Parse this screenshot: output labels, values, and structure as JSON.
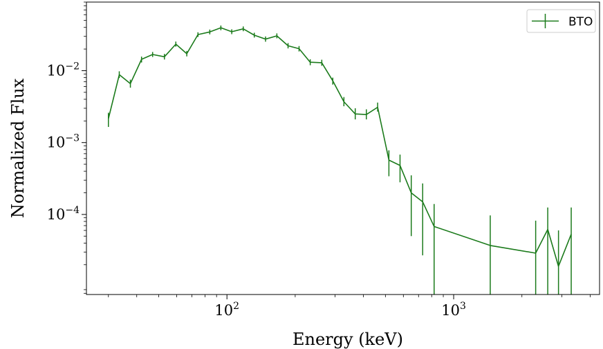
{
  "chart_data": {
    "type": "line",
    "xlabel": "Energy (keV)",
    "ylabel": "Normalized Flux",
    "xscale": "log",
    "yscale": "log",
    "xlim": [
      24,
      4400
    ],
    "ylim": [
      7.7e-06,
      0.09
    ],
    "x_ticks": [
      {
        "value": 100,
        "base": "10",
        "exp": "2"
      },
      {
        "value": 1000,
        "base": "10",
        "exp": "3"
      }
    ],
    "y_ticks": [
      {
        "value": 0.0001,
        "base": "10",
        "exp": "−4"
      },
      {
        "value": 0.001,
        "base": "10",
        "exp": "−3"
      },
      {
        "value": 0.01,
        "base": "10",
        "exp": "−2"
      }
    ],
    "grid": false,
    "legend": {
      "position": "top-right"
    },
    "series": [
      {
        "name": "BTO",
        "color": "#1a7a1a",
        "points": [
          {
            "x": 30,
            "y": 0.00215,
            "lo": 0.00165,
            "hi": 0.0026
          },
          {
            "x": 33.5,
            "y": 0.0088,
            "lo": 0.0079,
            "hi": 0.0098
          },
          {
            "x": 37.5,
            "y": 0.0066,
            "lo": 0.0058,
            "hi": 0.0075
          },
          {
            "x": 42,
            "y": 0.0144,
            "lo": 0.013,
            "hi": 0.0157
          },
          {
            "x": 47,
            "y": 0.0168,
            "lo": 0.0155,
            "hi": 0.0182
          },
          {
            "x": 53,
            "y": 0.0156,
            "lo": 0.0143,
            "hi": 0.0171
          },
          {
            "x": 59.5,
            "y": 0.0234,
            "lo": 0.0216,
            "hi": 0.0254
          },
          {
            "x": 66.5,
            "y": 0.0172,
            "lo": 0.0158,
            "hi": 0.0188
          },
          {
            "x": 74.5,
            "y": 0.0318,
            "lo": 0.0295,
            "hi": 0.0342
          },
          {
            "x": 84,
            "y": 0.0346,
            "lo": 0.032,
            "hi": 0.0373
          },
          {
            "x": 94,
            "y": 0.0395,
            "lo": 0.0365,
            "hi": 0.0425
          },
          {
            "x": 105,
            "y": 0.0348,
            "lo": 0.0322,
            "hi": 0.0376
          },
          {
            "x": 118,
            "y": 0.0382,
            "lo": 0.0354,
            "hi": 0.0412
          },
          {
            "x": 132,
            "y": 0.0312,
            "lo": 0.0289,
            "hi": 0.0337
          },
          {
            "x": 148,
            "y": 0.0275,
            "lo": 0.0253,
            "hi": 0.0299
          },
          {
            "x": 166,
            "y": 0.0305,
            "lo": 0.0282,
            "hi": 0.033
          },
          {
            "x": 186,
            "y": 0.0222,
            "lo": 0.0204,
            "hi": 0.0242
          },
          {
            "x": 208,
            "y": 0.0202,
            "lo": 0.0185,
            "hi": 0.022
          },
          {
            "x": 233,
            "y": 0.0131,
            "lo": 0.0119,
            "hi": 0.0144
          },
          {
            "x": 262,
            "y": 0.0129,
            "lo": 0.0117,
            "hi": 0.0142
          },
          {
            "x": 293,
            "y": 0.0072,
            "lo": 0.0064,
            "hi": 0.008
          },
          {
            "x": 328,
            "y": 0.0037,
            "lo": 0.0032,
            "hi": 0.0043
          },
          {
            "x": 368,
            "y": 0.0025,
            "lo": 0.0021,
            "hi": 0.003
          },
          {
            "x": 412,
            "y": 0.00245,
            "lo": 0.0021,
            "hi": 0.0029
          },
          {
            "x": 462,
            "y": 0.0031,
            "lo": 0.0027,
            "hi": 0.0036
          },
          {
            "x": 518,
            "y": 0.00057,
            "lo": 0.00034,
            "hi": 0.00078
          },
          {
            "x": 580,
            "y": 0.00048,
            "lo": 0.00028,
            "hi": 0.00068
          },
          {
            "x": 650,
            "y": 0.0002,
            "lo": 5e-05,
            "hi": 0.00035
          },
          {
            "x": 730,
            "y": 0.00015,
            "lo": 2.7e-05,
            "hi": 0.00027
          },
          {
            "x": 820,
            "y": 6.8e-05,
            "lo": 7.7e-06,
            "hi": 0.00014
          },
          {
            "x": 1450,
            "y": 3.7e-05,
            "lo": 7.7e-06,
            "hi": 9.7e-05
          },
          {
            "x": 2300,
            "y": 2.9e-05,
            "lo": 7.7e-06,
            "hi": 8.2e-05
          },
          {
            "x": 2600,
            "y": 6.2e-05,
            "lo": 7.7e-06,
            "hi": 0.000125
          },
          {
            "x": 2900,
            "y": 1.9e-05,
            "lo": 7.7e-06,
            "hi": 6e-05
          },
          {
            "x": 3300,
            "y": 5.3e-05,
            "lo": 7.7e-06,
            "hi": 0.000125
          }
        ]
      }
    ]
  }
}
